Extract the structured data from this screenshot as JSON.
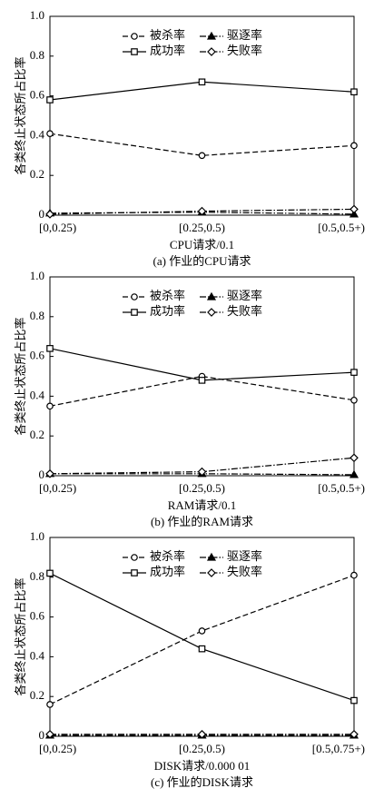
{
  "chart_data": [
    {
      "type": "line",
      "ylabel": "各类终止状态所占比率",
      "xlabel": "CPU请求/0.1",
      "caption": "(a) 作业的CPU请求",
      "categories": [
        "[0,0.25)",
        "[0.25,0.5)",
        "[0.5,0.5+)"
      ],
      "ylim": [
        0,
        1
      ],
      "yticks": [
        0,
        0.2,
        0.4,
        0.6,
        0.8,
        {
          "value": 1,
          "label": "1.0"
        }
      ],
      "legend": "upper center",
      "series": [
        {
          "name": "被杀率",
          "color": "#000000",
          "marker": "circle",
          "dash": "dashed",
          "values": [
            0.41,
            0.3,
            0.35
          ]
        },
        {
          "name": "驱逐率",
          "color": "#000000",
          "marker": "triangle",
          "dash": "dashdot",
          "values": [
            0.01,
            0.015,
            0.005
          ]
        },
        {
          "name": "成功率",
          "color": "#000000",
          "marker": "square",
          "dash": "solid",
          "values": [
            0.58,
            0.67,
            0.62
          ]
        },
        {
          "name": "失败率",
          "color": "#000000",
          "marker": "diamond",
          "dash": "dashdot",
          "values": [
            0.005,
            0.02,
            0.03
          ]
        }
      ]
    },
    {
      "type": "line",
      "ylabel": "各类终止状态所占比率",
      "xlabel": "RAM请求/0.1",
      "caption": "(b) 作业的RAM请求",
      "categories": [
        "[0,0.25)",
        "[0.25,0.5)",
        "[0.5,0.5+)"
      ],
      "ylim": [
        0,
        1
      ],
      "yticks": [
        0,
        0.2,
        0.4,
        0.6,
        0.8,
        {
          "value": 1,
          "label": "1.0"
        }
      ],
      "legend": "upper center",
      "series": [
        {
          "name": "被杀率",
          "color": "#000000",
          "marker": "circle",
          "dash": "dashed",
          "values": [
            0.35,
            0.5,
            0.38
          ]
        },
        {
          "name": "驱逐率",
          "color": "#000000",
          "marker": "triangle",
          "dash": "dashdot",
          "values": [
            0.01,
            0.01,
            0.005
          ]
        },
        {
          "name": "成功率",
          "color": "#000000",
          "marker": "square",
          "dash": "solid",
          "values": [
            0.64,
            0.48,
            0.52
          ]
        },
        {
          "name": "失败率",
          "color": "#000000",
          "marker": "diamond",
          "dash": "dashdot",
          "values": [
            0.01,
            0.02,
            0.09
          ]
        }
      ]
    },
    {
      "type": "line",
      "ylabel": "各类终止状态所占比率",
      "xlabel": "DISK请求/0.000 01",
      "caption": "(c) 作业的DISK请求",
      "categories": [
        "[0,0.25)",
        "[0.25,0.5)",
        "[0.5,0.75+)"
      ],
      "ylim": [
        0,
        1
      ],
      "yticks": [
        0,
        0.2,
        0.4,
        0.6,
        0.8,
        {
          "value": 1,
          "label": "1.0"
        }
      ],
      "legend": "upper center",
      "series": [
        {
          "name": "被杀率",
          "color": "#000000",
          "marker": "circle",
          "dash": "dashed",
          "values": [
            0.16,
            0.53,
            0.81
          ]
        },
        {
          "name": "驱逐率",
          "color": "#000000",
          "marker": "triangle",
          "dash": "dashdot",
          "values": [
            0.005,
            0.005,
            0.005
          ]
        },
        {
          "name": "成功率",
          "color": "#000000",
          "marker": "square",
          "dash": "solid",
          "values": [
            0.82,
            0.44,
            0.18
          ]
        },
        {
          "name": "失败率",
          "color": "#000000",
          "marker": "diamond",
          "dash": "dashdot",
          "values": [
            0.01,
            0.01,
            0.01
          ]
        }
      ]
    }
  ]
}
